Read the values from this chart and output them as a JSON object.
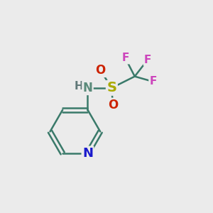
{
  "bg_color": "#ebebeb",
  "atom_colors": {
    "C": "#3a7a6a",
    "N_pyridine": "#1a1acc",
    "N_amine": "#5a8a7a",
    "H": "#607878",
    "S": "#aaaa00",
    "O": "#cc2200",
    "F": "#cc44bb"
  },
  "bond_color": "#3a7a6a",
  "bond_width": 1.8,
  "font_size": 12
}
